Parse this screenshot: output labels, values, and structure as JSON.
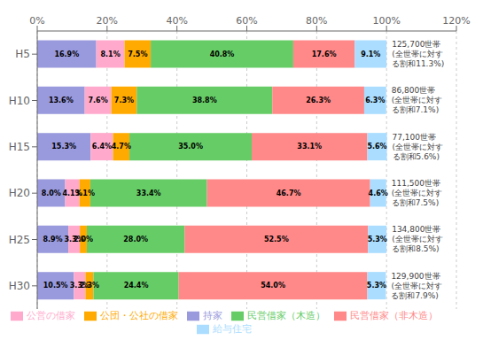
{
  "chart_data": {
    "type": "bar",
    "orientation": "horizontal",
    "stacked": true,
    "data_labels": true,
    "grid": true,
    "legend": "bottom",
    "categories": [
      "H5",
      "H10",
      "H15",
      "H20",
      "H25",
      "H30"
    ],
    "series": [
      {
        "name": "持家",
        "color": "#9999dd",
        "values": [
          16.9,
          13.6,
          15.3,
          8.0,
          8.9,
          10.5
        ],
        "value_labels": [
          "16.9%",
          "13.6%",
          "15.3%",
          "8.0%",
          "8.9%",
          "10.5%"
        ]
      },
      {
        "name": "公営の借家",
        "color": "#ffaacc",
        "values": [
          8.1,
          7.6,
          6.4,
          4.1,
          3.3,
          3.3
        ],
        "value_labels": [
          "8.1%",
          "7.6%",
          "6.4%",
          "4.1%",
          "3.3%",
          "3.3%"
        ]
      },
      {
        "name": "公団・公社の借家",
        "color": "#ffaa00",
        "values": [
          7.5,
          7.3,
          4.7,
          3.1,
          2.0,
          2.3
        ],
        "value_labels": [
          "7.5%",
          "7.3%",
          "4.7%",
          "3.1%",
          "2.0%",
          "2.3%"
        ]
      },
      {
        "name": "民営借家（木造）",
        "color": "#66cc66",
        "values": [
          40.8,
          38.8,
          35.0,
          33.4,
          28.0,
          24.4
        ],
        "value_labels": [
          "40.8%",
          "38.8%",
          "35.0%",
          "33.4%",
          "28.0%",
          "24.4%"
        ]
      },
      {
        "name": "民営借家（非木造）",
        "color": "#ff8888",
        "values": [
          17.6,
          26.3,
          33.1,
          46.7,
          52.5,
          54.0
        ],
        "value_labels": [
          "17.6%",
          "26.3%",
          "33.1%",
          "46.7%",
          "52.5%",
          "54.0%"
        ]
      },
      {
        "name": "給与住宅",
        "color": "#aaddff",
        "values": [
          9.1,
          6.3,
          5.6,
          4.6,
          5.3,
          5.3
        ],
        "value_labels": [
          "9.1%",
          "6.3%",
          "5.6%",
          "4.6%",
          "5.3%",
          "5.3%"
        ]
      }
    ],
    "xlim": [
      0,
      120
    ],
    "xticks": [
      {
        "value": 0,
        "label": "0%"
      },
      {
        "value": 20,
        "label": "20%"
      },
      {
        "value": 40,
        "label": "40%"
      },
      {
        "value": 60,
        "label": "60%"
      },
      {
        "value": 80,
        "label": "80%"
      },
      {
        "value": 100,
        "label": "100%"
      },
      {
        "value": 120,
        "label": "120%"
      }
    ],
    "annotations": [
      "125,700世帯\n(全世帯に対す\nる割和11.3%)",
      "86,800世帯\n(全世帯に対す\nる割和7.1%)",
      "77,100世帯\n(全世帯に対す\nる割和5.6%)",
      "111,500世帯\n(全世帯に対す\nる割和7.5%)",
      "134,800世帯\n(全世帯に対す\nる割和8.5%)",
      "129,900世帯\n(全世帯に対す\nる割和7.9%)"
    ]
  }
}
